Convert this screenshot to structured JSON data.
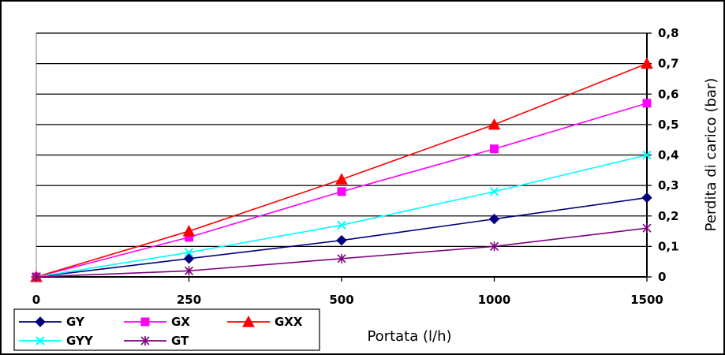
{
  "chart_data": {
    "type": "line",
    "title": "",
    "xlabel": "Portata (l/h)",
    "ylabel": "Perdita di carico (bar)",
    "categories": [
      "0",
      "250",
      "500",
      "1000",
      "1500"
    ],
    "y_ticks": [
      "0",
      "0,1",
      "0,2",
      "0,3",
      "0,4",
      "0,5",
      "0,6",
      "0,7",
      "0,8"
    ],
    "ylim": [
      0,
      0.8
    ],
    "grid": true,
    "legend_position": "bottom-left",
    "series": [
      {
        "name": "GY",
        "values": [
          0,
          0.06,
          0.12,
          0.19,
          0.26
        ],
        "color": "#000080",
        "marker": "diamond"
      },
      {
        "name": "GX",
        "values": [
          0,
          0.13,
          0.28,
          0.42,
          0.57
        ],
        "color": "#FF00FF",
        "marker": "square"
      },
      {
        "name": "GXX",
        "values": [
          0,
          0.15,
          0.32,
          0.5,
          0.7
        ],
        "color": "#FF0000",
        "marker": "triangle"
      },
      {
        "name": "GYY",
        "values": [
          0,
          0.08,
          0.17,
          0.28,
          0.4
        ],
        "color": "#00FFFF",
        "marker": "x"
      },
      {
        "name": "GT",
        "values": [
          0,
          0.02,
          0.06,
          0.1,
          0.16
        ],
        "color": "#800080",
        "marker": "star"
      }
    ]
  }
}
